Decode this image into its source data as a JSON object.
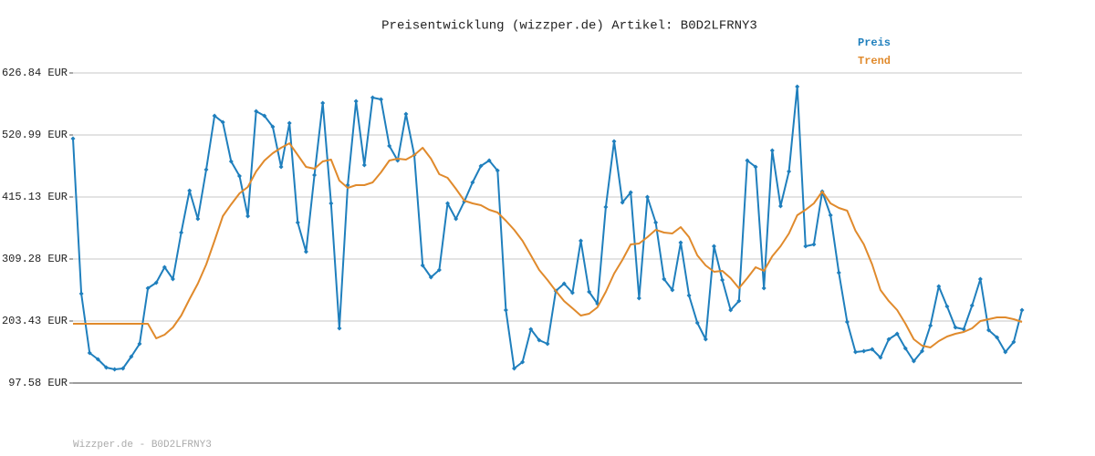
{
  "chart_data": {
    "type": "line",
    "title": "Preisentwicklung (wizzper.de) Artikel: B0D2LFRNY3",
    "footer": "Wizzper.de - B0D2LFRNY3",
    "ylim": [
      97.58,
      626.84
    ],
    "yticks": [
      {
        "value": 97.58,
        "label": "97.58 EUR"
      },
      {
        "value": 203.43,
        "label": "203.43 EUR"
      },
      {
        "value": 309.28,
        "label": "309.28 EUR"
      },
      {
        "value": 415.13,
        "label": "415.13 EUR"
      },
      {
        "value": 520.99,
        "label": "520.99 EUR"
      },
      {
        "value": 626.84,
        "label": "626.84 EUR"
      }
    ],
    "grid": true,
    "legend": "top-right",
    "series": [
      {
        "name": "Preis",
        "color": "#1f7fbd",
        "markers": true,
        "values": [
          514.8,
          250.1,
          148.9,
          138.0,
          124.0,
          120.9,
          122.5,
          142.7,
          164.5,
          259.4,
          268.8,
          295.2,
          275.0,
          354.4,
          426.0,
          377.7,
          461.8,
          553.6,
          542.7,
          475.8,
          450.9,
          382.4,
          561.4,
          553.6,
          535.0,
          466.5,
          541.2,
          371.5,
          321.7,
          452.5,
          575.4,
          404.2,
          191.0,
          435.3,
          578.5,
          469.6,
          584.8,
          581.7,
          502.3,
          477.4,
          556.8,
          486.7,
          298.4,
          278.1,
          290.6,
          404.2,
          377.7,
          407.3,
          440.0,
          468.0,
          477.4,
          460.2,
          222.1,
          122.5,
          133.4,
          189.4,
          170.7,
          164.5,
          254.8,
          267.2,
          251.7,
          340.4,
          253.2,
          233.0,
          398.0,
          510.1,
          405.8,
          422.9,
          242.3,
          415.1,
          371.5,
          275.0,
          256.3,
          337.3,
          247.0,
          200.3,
          172.3,
          331.0,
          273.5,
          222.1,
          237.6,
          477.4,
          466.5,
          259.4,
          494.5,
          399.5,
          458.7,
          603.5,
          331.0,
          334.2,
          424.4,
          384.0,
          285.9,
          201.8,
          150.5,
          152.0,
          155.2,
          141.1,
          172.3,
          181.6,
          156.7,
          134.9,
          152.0,
          195.6,
          262.6,
          228.3,
          192.5,
          189.4,
          229.9,
          275.0,
          187.8,
          175.4,
          150.5,
          167.6,
          222.1
        ]
      },
      {
        "name": "Trend",
        "color": "#e08a2c",
        "markers": false,
        "values": [
          198.7,
          198.7,
          198.7,
          198.7,
          198.7,
          198.7,
          198.7,
          198.7,
          198.7,
          198.7,
          173.8,
          180.1,
          192.5,
          212.7,
          240.8,
          267.2,
          299.9,
          340.4,
          382.4,
          402.6,
          421.3,
          432.2,
          458.7,
          477.4,
          489.8,
          499.2,
          506.9,
          486.7,
          466.5,
          463.4,
          475.8,
          478.9,
          443.1,
          430.7,
          435.3,
          435.3,
          440.0,
          457.1,
          477.4,
          480.5,
          478.9,
          486.7,
          499.2,
          480.5,
          454.0,
          447.8,
          429.1,
          408.9,
          404.2,
          401.1,
          393.3,
          388.6,
          374.6,
          359.1,
          340.4,
          315.5,
          290.6,
          273.5,
          254.8,
          237.6,
          225.2,
          212.7,
          215.9,
          226.8,
          253.2,
          284.3,
          307.7,
          334.2,
          335.7,
          346.6,
          359.1,
          354.4,
          352.8,
          363.7,
          346.6,
          315.5,
          298.4,
          287.5,
          289.0,
          276.6,
          259.4,
          276.6,
          295.2,
          289.0,
          313.9,
          331.0,
          352.8,
          384.0,
          393.3,
          404.2,
          424.4,
          404.2,
          396.4,
          391.8,
          357.5,
          334.2,
          299.9,
          256.3,
          237.6,
          222.1,
          198.7,
          172.3,
          161.4,
          158.3,
          169.2,
          176.9,
          181.6,
          184.7,
          191.0,
          203.4,
          206.5,
          209.6,
          209.6,
          206.5,
          201.8
        ]
      }
    ]
  }
}
